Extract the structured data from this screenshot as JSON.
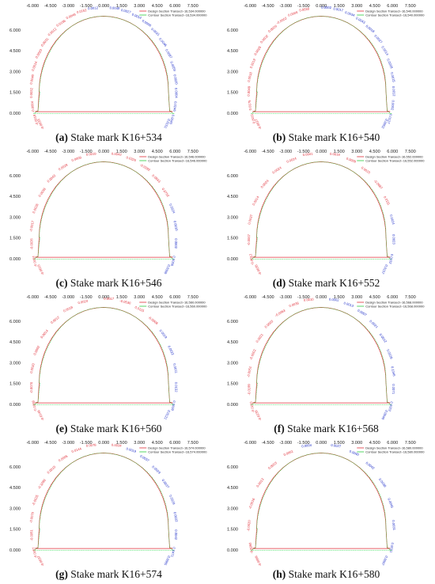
{
  "x_ticks": [
    "-6.000",
    "-4.500",
    "-3.000",
    "-1.500",
    "0.000",
    "1.500",
    "3.000",
    "4.500",
    "6.000",
    "7.500"
  ],
  "y_ticks": [
    "6.000",
    "4.500",
    "3.000",
    "1.500",
    "0.000"
  ],
  "colors": {
    "design": "#e0303a",
    "contour": "#2ecc40",
    "label_red": "#e0303a",
    "label_blue": "#2030c8"
  },
  "panels": [
    {
      "letter": "(a)",
      "caption": "Stake mark K16+534",
      "legend": [
        "Design Section Transect~16,534.000000",
        "Contour Section Transect~16,534.000000"
      ],
      "labels_red": [
        "-0.0033",
        "-0.0018",
        "-0.0004",
        "0.0032",
        "0.0040",
        "0.0014",
        "0.0023",
        "0.0031",
        "0.0012",
        "0.0196",
        "0.0049",
        "0.0152"
      ],
      "labels_blue": [
        "0.0012",
        "0.0049",
        "0.0027",
        "0.0014",
        "0.0008",
        "0.0021",
        "0.0046",
        "0.0087",
        "0.0059",
        "0.0020",
        "0.0004",
        "0.0246",
        "0.0040",
        "0.0151"
      ]
    },
    {
      "letter": "(b)",
      "caption": "Stake mark K16+540",
      "legend": [
        "Design Section Transect~16,540.000000",
        "Contour Section Transect~16,540.000000"
      ],
      "labels_red": [
        "-0.0027",
        "0.0011",
        "0.0175",
        "0.0049",
        "0.0018",
        "0.0019",
        "0.0025",
        "0.0032",
        "0.0026",
        "-0.0002",
        "0.0009",
        "0.0030"
      ],
      "labels_blue": [
        "0.0002",
        "0.0017",
        "0.0034",
        "0.0043",
        "0.0018",
        "0.0027",
        "0.0014",
        "0.0008",
        "0.0015",
        "0.0012",
        "0.0002",
        "0.0127",
        "0.0052"
      ]
    },
    {
      "letter": "(c)",
      "caption": "Stake mark K16+546",
      "legend": [
        "Design Section Transect~16,546.000000",
        "Contour Section Transect~16,546.000000"
      ],
      "labels_red": [
        "-0.0015",
        "-0.0004",
        "-0.0026",
        "-0.0017",
        "0.0026",
        "0.0038",
        "0.0043",
        "0.0029",
        "0.0009",
        "0.0019",
        "0.0043",
        "0.0326",
        "-0.0392",
        "0.0843",
        "0.0752"
      ],
      "labels_blue": [
        "0.0024",
        "0.0010",
        "0.0002",
        "0.0056",
        "0.0308"
      ]
    },
    {
      "letter": "(d)",
      "caption": "Stake mark K16+552",
      "legend": [
        "Design Section Transect~16,552.000000",
        "Contour Section Transect~16,552.000000"
      ],
      "labels_red": [
        "-0.0035",
        "-0.0012",
        "-0.0007",
        "0.0037",
        "0.0014",
        "0.0024",
        "0.0024",
        "0.0024",
        "0.0041",
        "0.0019",
        "0.0009",
        "0.0015",
        "-0.0687",
        "0.0111"
      ],
      "labels_blue": [
        "0.0024",
        "0.0023",
        "0.0102",
        "0.0157"
      ]
    },
    {
      "letter": "(e)",
      "caption": "Stake mark K16+560",
      "legend": [
        "Design Section Transect~16,560.000000",
        "Contour Section Transect~16,560.000000"
      ],
      "labels_red": [
        "-0.0146",
        "-0.0058",
        "-0.0070",
        "0.0033",
        "0.0002",
        "0.0014",
        "0.0012",
        "0.0018",
        "0.0020",
        "0.0017",
        "-0.0530",
        "0.0115",
        "-0.0008"
      ],
      "labels_blue": [
        "0.0019",
        "0.0022",
        "0.0011",
        "0.0152",
        "0.0059",
        "0.0121"
      ]
    },
    {
      "letter": "(f)",
      "caption": "Stake mark K16+568",
      "legend": [
        "Design Section Transect~16,568.000000",
        "Contour Section Transect~16,568.000000"
      ],
      "labels_red": [
        "-0.0239",
        "-0.0210",
        "-0.0199",
        "-0.0051",
        "-0.0002",
        "0.0021",
        "0.0003",
        "-0.0063",
        "0.0036",
        "0.0010"
      ],
      "labels_blue": [
        "0.0002",
        "0.0013",
        "0.0007",
        "0.0021",
        "0.0012",
        "0.0028",
        "0.1345",
        "0.2071",
        "0.0002",
        "0.0048"
      ]
    },
    {
      "letter": "(g)",
      "caption": "Stake mark K16+574",
      "legend": [
        "Design Section Transect~16,574.000000",
        "Contour Section Transect~16,574.000000"
      ],
      "labels_red": [
        "-0.0037",
        "-0.0057",
        "-0.0051",
        "-0.0070",
        "-0.0025",
        "-0.3288",
        "0.0015",
        "0.0005",
        "0.0144",
        "0.0078",
        "0.0034"
      ],
      "labels_blue": [
        "0.0019",
        "0.0037",
        "0.0029",
        "0.0037",
        "0.0029",
        "0.0032",
        "0.0042",
        "0.0471",
        "0.0085"
      ]
    },
    {
      "letter": "(h)",
      "caption": "Stake mark K16+580",
      "legend": [
        "Design Section Transect~16,580.000000",
        "Contour Section Transect~16,580.000000"
      ],
      "labels_red": [
        "-0.0066",
        "-0.0050",
        "-0.0020",
        "-0.0016",
        "0.0013",
        "0.0023",
        "0.0061"
      ],
      "labels_blue": [
        "0.0004",
        "0.0027",
        "0.0040",
        "0.0042",
        "0.0038",
        "0.0046",
        "0.0031",
        "0.0021",
        "0.0007"
      ]
    }
  ]
}
